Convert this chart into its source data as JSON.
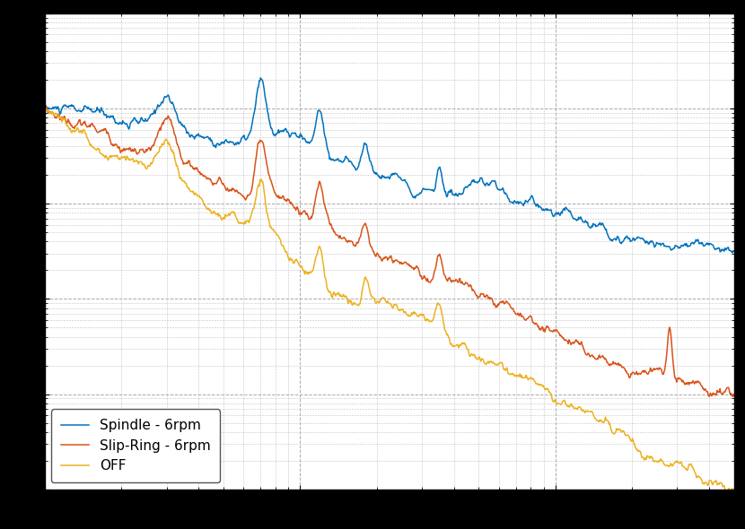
{
  "line1_label": "Spindle - 6rpm",
  "line2_label": "Slip-Ring - 6rpm",
  "line3_label": "OFF",
  "line1_color": "#0072BD",
  "line2_color": "#D95319",
  "line3_color": "#EDB120",
  "background_color": "#ffffff",
  "fig_facecolor": "#000000",
  "grid_color": "#aaaaaa",
  "legend_fontsize": 11,
  "tick_fontsize": 10,
  "line_width": 1.1,
  "n_points": 1000,
  "xlim": [
    1,
    500
  ],
  "ylim": [
    1e-09,
    0.0001
  ],
  "legend_loc": "lower left"
}
